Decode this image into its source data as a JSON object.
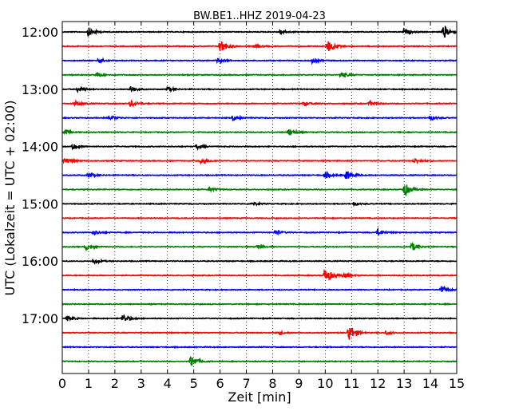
{
  "chart_data": {
    "type": "line",
    "title": "BW.BE1..HHZ 2019-04-23",
    "xlabel": "Zeit  [min]",
    "ylabel": "UTC (Lokalzeit = UTC + 02:00)",
    "xlim": [
      0,
      15
    ],
    "x_ticks": [
      "0",
      "1",
      "2",
      "3",
      "4",
      "5",
      "6",
      "7",
      "8",
      "9",
      "10",
      "11",
      "12",
      "13",
      "14",
      "15"
    ],
    "y_ticks": [
      "12:00",
      "13:00",
      "14:00",
      "15:00",
      "16:00",
      "17:00"
    ],
    "trace_interval_min": 15,
    "start_time": "12:00",
    "grid": "vertical dotted",
    "colors": [
      "#000000",
      "#ff0000",
      "#0000ff",
      "#008000"
    ],
    "traces": [
      {
        "label": "12:00",
        "color": "#000000",
        "events": [
          [
            1.0,
            0.55
          ],
          [
            8.3,
            0.3
          ],
          [
            14.5,
            0.85
          ],
          [
            13.0,
            0.35
          ]
        ]
      },
      {
        "label": "12:15",
        "color": "#ff0000",
        "events": [
          [
            6.0,
            0.95
          ],
          [
            10.1,
            0.8
          ],
          [
            7.3,
            0.25
          ]
        ]
      },
      {
        "label": "12:30",
        "color": "#0000ff",
        "events": [
          [
            1.4,
            0.35
          ],
          [
            5.9,
            0.3
          ],
          [
            9.5,
            0.3
          ]
        ]
      },
      {
        "label": "12:45",
        "color": "#008000",
        "events": [
          [
            1.3,
            0.3
          ],
          [
            10.6,
            0.4
          ]
        ]
      },
      {
        "label": "13:00",
        "color": "#000000",
        "events": [
          [
            0.6,
            0.4
          ],
          [
            2.6,
            0.45
          ],
          [
            4.0,
            0.3
          ]
        ]
      },
      {
        "label": "13:15",
        "color": "#ff0000",
        "events": [
          [
            0.5,
            0.3
          ],
          [
            2.6,
            0.4
          ],
          [
            9.2,
            0.3
          ],
          [
            11.7,
            0.3
          ]
        ]
      },
      {
        "label": "13:30",
        "color": "#0000ff",
        "events": [
          [
            1.8,
            0.3
          ],
          [
            6.5,
            0.35
          ],
          [
            14.0,
            0.3
          ]
        ]
      },
      {
        "label": "13:45",
        "color": "#008000",
        "events": [
          [
            8.6,
            0.4
          ],
          [
            0.1,
            0.3
          ]
        ]
      },
      {
        "label": "14:00",
        "color": "#000000",
        "events": [
          [
            0.4,
            0.35
          ],
          [
            5.1,
            0.3
          ]
        ]
      },
      {
        "label": "14:15",
        "color": "#ff0000",
        "events": [
          [
            0.1,
            0.4
          ],
          [
            5.3,
            0.45
          ],
          [
            13.4,
            0.3
          ]
        ]
      },
      {
        "label": "14:30",
        "color": "#0000ff",
        "events": [
          [
            10.8,
            0.6
          ],
          [
            10.0,
            0.4
          ],
          [
            1.0,
            0.3
          ]
        ]
      },
      {
        "label": "14:45",
        "color": "#008000",
        "events": [
          [
            13.0,
            0.9
          ],
          [
            5.6,
            0.25
          ]
        ]
      },
      {
        "label": "15:00",
        "color": "#000000",
        "events": [
          [
            7.2,
            0.25
          ],
          [
            11.1,
            0.2
          ]
        ]
      },
      {
        "label": "15:15",
        "color": "#ff0000",
        "events": []
      },
      {
        "label": "15:30",
        "color": "#0000ff",
        "events": [
          [
            1.2,
            0.3
          ],
          [
            8.1,
            0.3
          ],
          [
            12.0,
            0.4
          ]
        ]
      },
      {
        "label": "15:45",
        "color": "#008000",
        "events": [
          [
            0.9,
            0.35
          ],
          [
            13.3,
            0.5
          ],
          [
            7.4,
            0.25
          ]
        ]
      },
      {
        "label": "16:00",
        "color": "#000000",
        "events": [
          [
            1.2,
            0.3
          ]
        ]
      },
      {
        "label": "16:15",
        "color": "#ff0000",
        "events": [
          [
            10.0,
            1.0
          ],
          [
            10.7,
            0.3
          ]
        ]
      },
      {
        "label": "16:30",
        "color": "#0000ff",
        "events": [
          [
            14.4,
            0.5
          ]
        ]
      },
      {
        "label": "16:45",
        "color": "#008000",
        "events": []
      },
      {
        "label": "17:00",
        "color": "#000000",
        "events": [
          [
            0.2,
            0.35
          ],
          [
            2.3,
            0.6
          ]
        ]
      },
      {
        "label": "17:15",
        "color": "#ff0000",
        "events": [
          [
            10.9,
            1.2
          ],
          [
            8.2,
            0.2
          ],
          [
            12.3,
            0.25
          ]
        ]
      },
      {
        "label": "17:30",
        "color": "#0000ff",
        "events": []
      },
      {
        "label": "17:45",
        "color": "#008000",
        "events": [
          [
            4.9,
            0.75
          ]
        ]
      }
    ]
  }
}
